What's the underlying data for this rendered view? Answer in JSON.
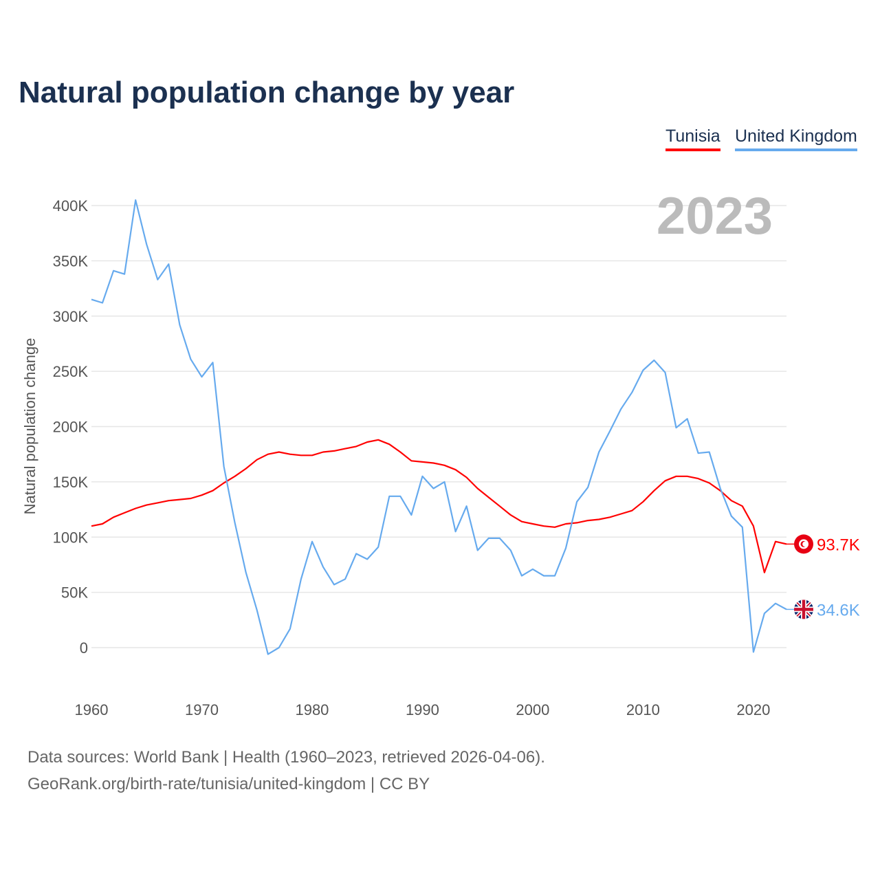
{
  "title": "Natural population change by year",
  "year_watermark": "2023",
  "footer": {
    "line1": "Data sources: World Bank | Health (1960–2023, retrieved 2026-04-06).",
    "line2": "GeoRank.org/birth-rate/tunisia/united-kingdom | CC BY"
  },
  "chart_data": {
    "type": "line",
    "title": "Natural population change by year",
    "xlabel": "",
    "ylabel": "Natural population change",
    "xlim": [
      1960,
      2023
    ],
    "ylim": [
      -25000,
      420000
    ],
    "y_ticks": [
      0,
      50000,
      100000,
      150000,
      200000,
      250000,
      300000,
      350000,
      400000
    ],
    "y_tick_labels": [
      "0",
      "50K",
      "100K",
      "150K",
      "200K",
      "250K",
      "300K",
      "350K",
      "400K"
    ],
    "x_ticks": [
      1960,
      1970,
      1980,
      1990,
      2000,
      2010,
      2020
    ],
    "x_tick_labels": [
      "1960",
      "1970",
      "1980",
      "1990",
      "2000",
      "2010",
      "2020"
    ],
    "grid": true,
    "legend_position": "top-right",
    "x_start": 1960,
    "series": [
      {
        "name": "Tunisia",
        "color": "#ff0000",
        "end_label": "93.7K",
        "flag_icon": "tunisia-flag-icon",
        "values_k": [
          110,
          112,
          118,
          122,
          126,
          129,
          131,
          133,
          134,
          135,
          138,
          142,
          149,
          155,
          162,
          170,
          175,
          177,
          175,
          174,
          174,
          177,
          178,
          180,
          182,
          186,
          188,
          184,
          177,
          169,
          168,
          167,
          165,
          161,
          154,
          144,
          136,
          128,
          120,
          114,
          112,
          110,
          109,
          112,
          113,
          115,
          116,
          118,
          121,
          124,
          132,
          142,
          151,
          155,
          155,
          153,
          149,
          142,
          133,
          128,
          110,
          68,
          96,
          93.7
        ]
      },
      {
        "name": "United Kingdom",
        "color": "#66aaee",
        "end_label": "34.6K",
        "flag_icon": "uk-flag-icon",
        "values_k": [
          315,
          312,
          341,
          338,
          405,
          365,
          333,
          347,
          292,
          261,
          245,
          258,
          164,
          113,
          68,
          34,
          -6,
          0,
          17,
          62,
          96,
          73,
          57,
          62,
          85,
          80,
          91,
          137,
          137,
          120,
          155,
          144,
          150,
          105,
          128,
          88,
          99,
          99,
          88,
          65,
          71,
          65,
          65,
          90,
          132,
          145,
          177,
          196,
          216,
          231,
          251,
          260,
          249,
          199,
          207,
          176,
          177,
          144,
          119,
          109,
          -4,
          31,
          40,
          34.6
        ]
      }
    ]
  }
}
